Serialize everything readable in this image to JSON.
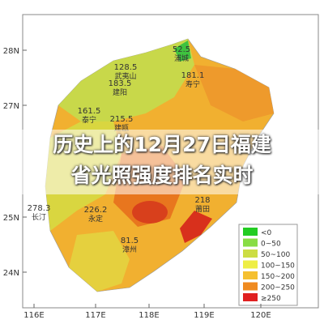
{
  "banner": {
    "lines": [
      "历史上的12月27日福建",
      "省光照强度排名实时"
    ]
  },
  "map": {
    "lat_labels": [
      "28N",
      "27N",
      "25N",
      "24N"
    ],
    "lon_labels": [
      "116E",
      "117E",
      "118E",
      "119E",
      "120E"
    ],
    "stations": [
      {
        "value": 52.5,
        "name": "浦城"
      },
      {
        "value": 128.5,
        "name": "武夷山"
      },
      {
        "value": 183.5,
        "name": "建阳"
      },
      {
        "value": 181.1,
        "name": "寿宁"
      },
      {
        "value": 161.5,
        "name": "泰宁"
      },
      {
        "value": 215.5,
        "name": "建瓯"
      },
      {
        "value": 278.3,
        "name": "长汀"
      },
      {
        "value": 226.2,
        "name": "永定"
      },
      {
        "value": 81.5,
        "name": "漳州"
      },
      {
        "value": 218.0,
        "name": "莆田"
      }
    ],
    "legend": [
      "<0",
      "0~50",
      "50~100",
      "100~150",
      "150~200",
      "200~250",
      "≥250"
    ]
  }
}
